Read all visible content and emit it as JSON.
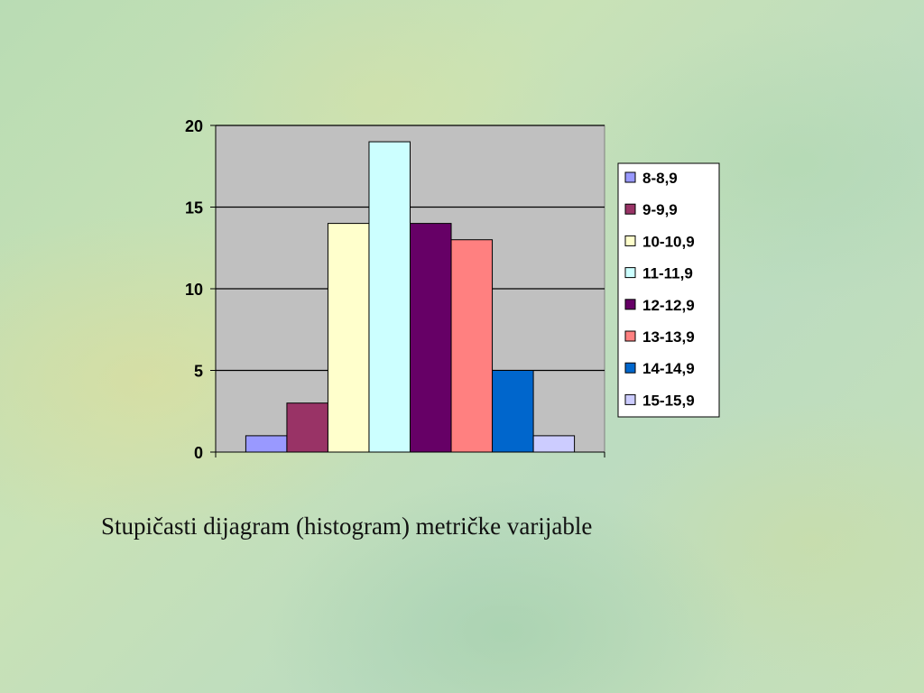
{
  "caption": "Stupičasti dijagram (histogram) metričke varijable",
  "chart_data": {
    "type": "bar",
    "title": "",
    "xlabel": "",
    "ylabel": "",
    "ylim": [
      0,
      20
    ],
    "yticks": [
      "0",
      "5",
      "10",
      "15",
      "20"
    ],
    "grid": true,
    "legend_position": "right",
    "plot_background": "#c0c0c0",
    "series": [
      {
        "name": "8-8,9",
        "value": 1,
        "color": "#9999ff"
      },
      {
        "name": "9-9,9",
        "value": 3,
        "color": "#993366"
      },
      {
        "name": "10-10,9",
        "value": 14,
        "color": "#ffffcc"
      },
      {
        "name": "11-11,9",
        "value": 19,
        "color": "#ccffff"
      },
      {
        "name": "12-12,9",
        "value": 14,
        "color": "#660066"
      },
      {
        "name": "13-13,9",
        "value": 13,
        "color": "#ff8080"
      },
      {
        "name": "14-14,9",
        "value": 5,
        "color": "#0066cc"
      },
      {
        "name": "15-15,9",
        "value": 1,
        "color": "#ccccff"
      }
    ]
  }
}
